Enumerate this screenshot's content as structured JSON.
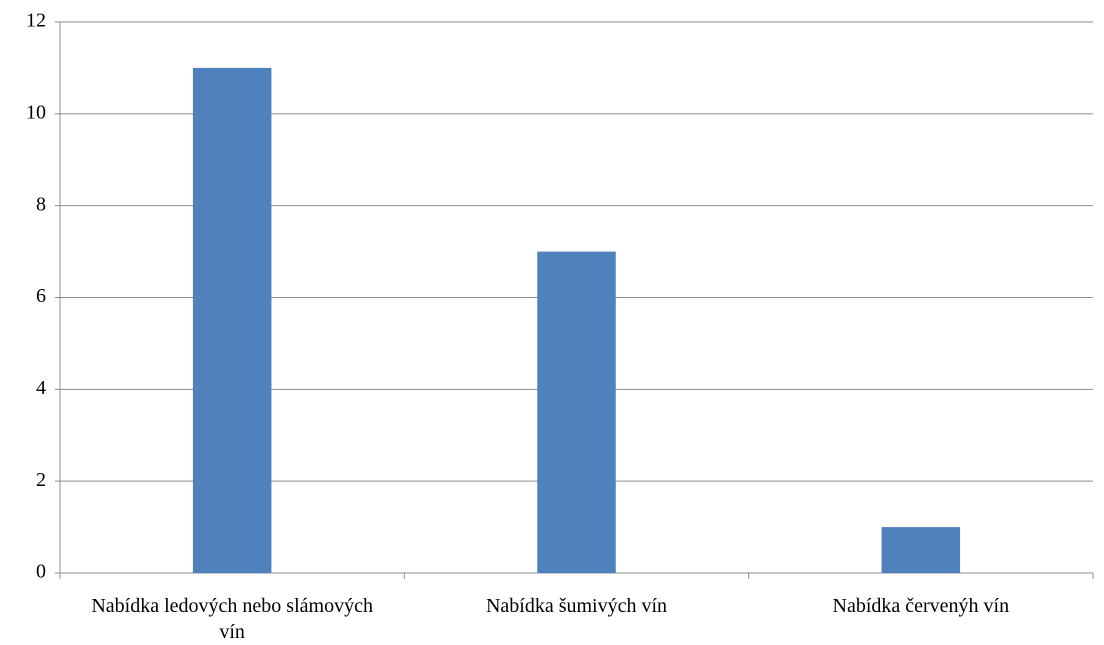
{
  "chart_data": {
    "type": "bar",
    "categories": [
      "Nabídka ledových nebo slámových vín",
      "Nabídka šumivých vín",
      "Nabídka červenýh vín"
    ],
    "values": [
      11,
      7,
      1
    ],
    "color": "#4f81bd",
    "ylim": [
      0,
      12
    ],
    "yticks": [
      0,
      2,
      4,
      6,
      8,
      10,
      12
    ],
    "grid": true
  }
}
